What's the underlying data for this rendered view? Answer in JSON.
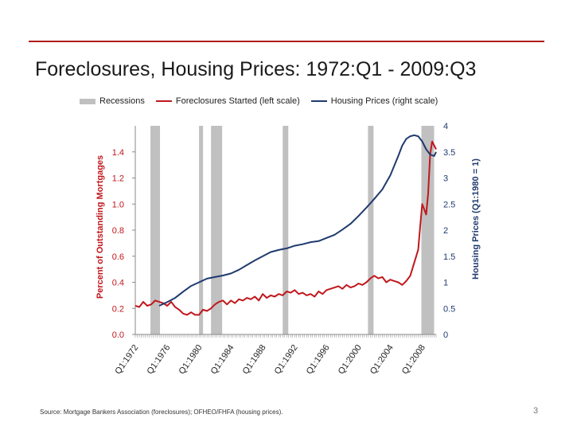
{
  "slide": {
    "title": "Foreclosures, Housing Prices: 1972:Q1 - 2009:Q3",
    "source": "Source: Mortgage Bankers Association (foreclosures); OFHEO/FHFA (housing prices).",
    "page_number": "3"
  },
  "colors": {
    "rule": "#b01c1c",
    "recession": "#c0c0c0",
    "foreclosures": "#c0171c",
    "housing": "#1f3a6e",
    "left_axis": "#c0171c",
    "right_axis": "#1f3a6e"
  },
  "chart_data": {
    "type": "line",
    "title": "Foreclosures, Housing Prices: 1972:Q1 - 2009:Q3",
    "legend": [
      "Recessions",
      "Foreclosures Started (left scale)",
      "Housing Prices (right scale)"
    ],
    "legend_placement": "top",
    "ylabel": "Percent of Outstanding Mortgages",
    "y2label": "Housing Prices (Q1:1980 = 1)",
    "ylim": [
      0,
      1.6
    ],
    "y2lim": [
      0,
      4
    ],
    "yticks": [
      "0.0",
      "0.2",
      "0.4",
      "0.6",
      "0.8",
      "1.0",
      "1.2",
      "1.4"
    ],
    "y2ticks": [
      "0",
      "0.5",
      "1",
      "1.5",
      "2",
      "2.5",
      "3",
      "3.5",
      "4"
    ],
    "xlim": [
      1972,
      2009.75
    ],
    "xticks": [
      {
        "label": "Q1:1972",
        "x": 1972
      },
      {
        "label": "Q1:1976",
        "x": 1976
      },
      {
        "label": "Q1:1980",
        "x": 1980
      },
      {
        "label": "Q1:1984",
        "x": 1984
      },
      {
        "label": "Q1:1988",
        "x": 1988
      },
      {
        "label": "Q1:1992",
        "x": 1992
      },
      {
        "label": "Q1:1996",
        "x": 1996
      },
      {
        "label": "Q1:2000",
        "x": 2000
      },
      {
        "label": "Q1:2004",
        "x": 2004
      },
      {
        "label": "Q1:2008",
        "x": 2008
      }
    ],
    "grid": false,
    "recessions": [
      [
        1973.9,
        1975.1
      ],
      [
        1980.0,
        1980.5
      ],
      [
        1981.5,
        1982.9
      ],
      [
        1990.5,
        1991.2
      ],
      [
        2001.2,
        2001.9
      ],
      [
        2007.9,
        2009.5
      ]
    ],
    "series": [
      {
        "name": "Foreclosures Started (left scale)",
        "axis": "left",
        "points": [
          [
            1972.0,
            0.22
          ],
          [
            1972.5,
            0.21
          ],
          [
            1973.0,
            0.25
          ],
          [
            1973.5,
            0.22
          ],
          [
            1974.0,
            0.23
          ],
          [
            1974.5,
            0.26
          ],
          [
            1975.0,
            0.25
          ],
          [
            1975.5,
            0.24
          ],
          [
            1976.0,
            0.22
          ],
          [
            1976.5,
            0.25
          ],
          [
            1977.0,
            0.21
          ],
          [
            1977.5,
            0.19
          ],
          [
            1978.0,
            0.16
          ],
          [
            1978.5,
            0.15
          ],
          [
            1979.0,
            0.17
          ],
          [
            1979.5,
            0.15
          ],
          [
            1980.0,
            0.15
          ],
          [
            1980.5,
            0.19
          ],
          [
            1981.0,
            0.18
          ],
          [
            1981.5,
            0.2
          ],
          [
            1982.0,
            0.23
          ],
          [
            1982.5,
            0.25
          ],
          [
            1983.0,
            0.26
          ],
          [
            1983.5,
            0.23
          ],
          [
            1984.0,
            0.26
          ],
          [
            1984.5,
            0.24
          ],
          [
            1985.0,
            0.27
          ],
          [
            1985.5,
            0.26
          ],
          [
            1986.0,
            0.28
          ],
          [
            1986.5,
            0.27
          ],
          [
            1987.0,
            0.29
          ],
          [
            1987.5,
            0.26
          ],
          [
            1988.0,
            0.31
          ],
          [
            1988.5,
            0.28
          ],
          [
            1989.0,
            0.3
          ],
          [
            1989.5,
            0.29
          ],
          [
            1990.0,
            0.31
          ],
          [
            1990.5,
            0.3
          ],
          [
            1991.0,
            0.33
          ],
          [
            1991.5,
            0.32
          ],
          [
            1992.0,
            0.34
          ],
          [
            1992.5,
            0.31
          ],
          [
            1993.0,
            0.32
          ],
          [
            1993.5,
            0.3
          ],
          [
            1994.0,
            0.31
          ],
          [
            1994.5,
            0.29
          ],
          [
            1995.0,
            0.33
          ],
          [
            1995.5,
            0.31
          ],
          [
            1996.0,
            0.34
          ],
          [
            1996.5,
            0.35
          ],
          [
            1997.0,
            0.36
          ],
          [
            1997.5,
            0.37
          ],
          [
            1998.0,
            0.35
          ],
          [
            1998.5,
            0.38
          ],
          [
            1999.0,
            0.36
          ],
          [
            1999.5,
            0.37
          ],
          [
            2000.0,
            0.39
          ],
          [
            2000.5,
            0.38
          ],
          [
            2001.0,
            0.4
          ],
          [
            2001.5,
            0.43
          ],
          [
            2002.0,
            0.45
          ],
          [
            2002.5,
            0.43
          ],
          [
            2003.0,
            0.44
          ],
          [
            2003.5,
            0.4
          ],
          [
            2004.0,
            0.42
          ],
          [
            2004.5,
            0.41
          ],
          [
            2005.0,
            0.4
          ],
          [
            2005.5,
            0.38
          ],
          [
            2006.0,
            0.41
          ],
          [
            2006.5,
            0.45
          ],
          [
            2007.0,
            0.55
          ],
          [
            2007.5,
            0.65
          ],
          [
            2007.75,
            0.83
          ],
          [
            2008.0,
            1.0
          ],
          [
            2008.25,
            0.96
          ],
          [
            2008.5,
            0.92
          ],
          [
            2008.75,
            1.08
          ],
          [
            2009.0,
            1.38
          ],
          [
            2009.25,
            1.48
          ],
          [
            2009.5,
            1.45
          ],
          [
            2009.75,
            1.42
          ]
        ]
      },
      {
        "name": "Housing Prices (right scale)",
        "axis": "right",
        "points": [
          [
            1975.0,
            0.55
          ],
          [
            1976.0,
            0.62
          ],
          [
            1977.0,
            0.7
          ],
          [
            1978.0,
            0.82
          ],
          [
            1979.0,
            0.93
          ],
          [
            1980.0,
            1.0
          ],
          [
            1981.0,
            1.07
          ],
          [
            1982.0,
            1.1
          ],
          [
            1983.0,
            1.13
          ],
          [
            1984.0,
            1.17
          ],
          [
            1985.0,
            1.24
          ],
          [
            1986.0,
            1.33
          ],
          [
            1987.0,
            1.42
          ],
          [
            1988.0,
            1.5
          ],
          [
            1989.0,
            1.58
          ],
          [
            1990.0,
            1.62
          ],
          [
            1991.0,
            1.65
          ],
          [
            1992.0,
            1.7
          ],
          [
            1993.0,
            1.73
          ],
          [
            1994.0,
            1.77
          ],
          [
            1995.0,
            1.79
          ],
          [
            1996.0,
            1.85
          ],
          [
            1997.0,
            1.91
          ],
          [
            1998.0,
            2.01
          ],
          [
            1999.0,
            2.12
          ],
          [
            2000.0,
            2.27
          ],
          [
            2001.0,
            2.43
          ],
          [
            2002.0,
            2.6
          ],
          [
            2003.0,
            2.78
          ],
          [
            2004.0,
            3.05
          ],
          [
            2005.0,
            3.42
          ],
          [
            2005.5,
            3.62
          ],
          [
            2006.0,
            3.75
          ],
          [
            2006.5,
            3.8
          ],
          [
            2007.0,
            3.82
          ],
          [
            2007.5,
            3.8
          ],
          [
            2008.0,
            3.7
          ],
          [
            2008.5,
            3.55
          ],
          [
            2009.0,
            3.45
          ],
          [
            2009.5,
            3.42
          ],
          [
            2009.75,
            3.5
          ]
        ]
      }
    ]
  }
}
